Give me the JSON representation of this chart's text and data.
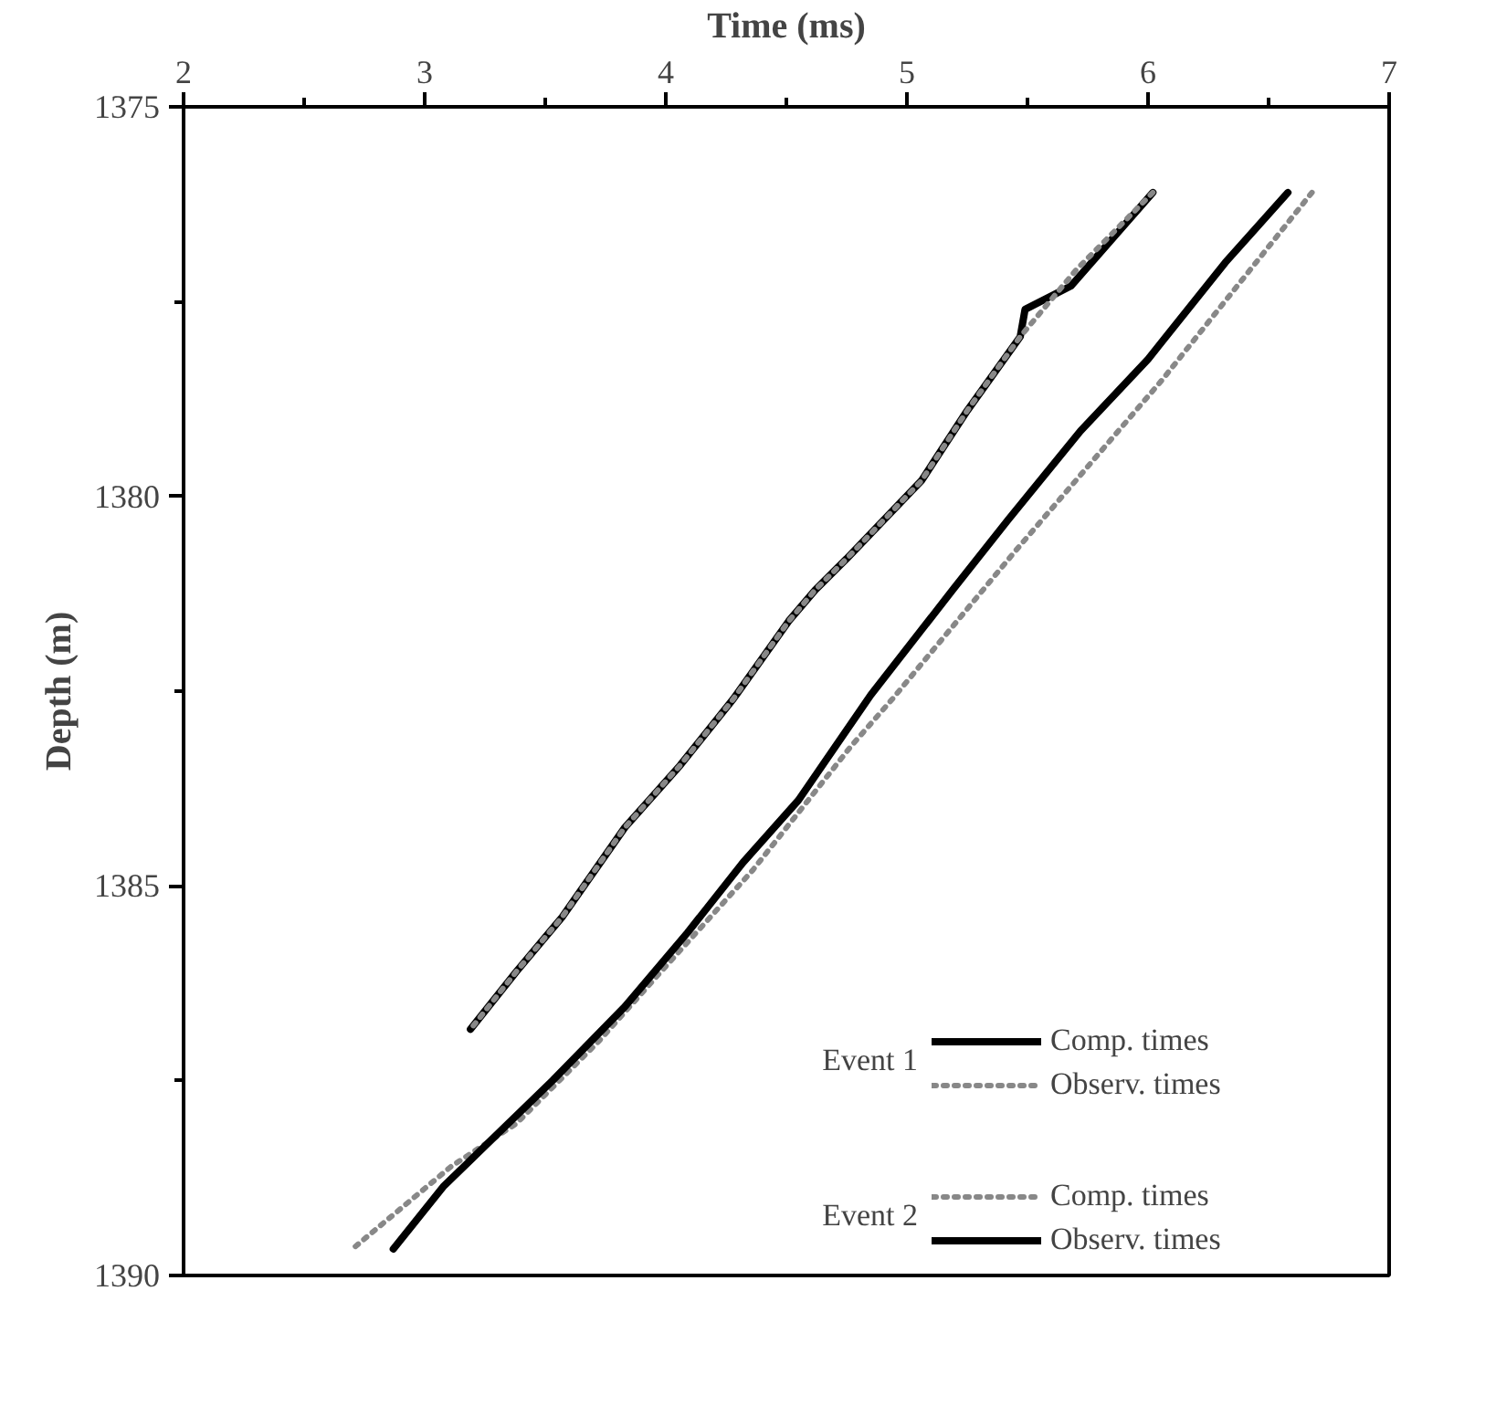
{
  "chart_data": {
    "type": "line",
    "xlabel": "Time (ms)",
    "ylabel": "Depth (m)",
    "xlim": [
      2,
      7
    ],
    "ylim": [
      1390,
      1375
    ],
    "xticks": [
      2,
      {
        "value": 2.5,
        "label": null
      },
      3,
      {
        "value": 3.5,
        "label": null
      },
      4,
      {
        "value": 4.5,
        "label": null
      },
      5,
      {
        "value": 5.5,
        "label": null
      },
      6,
      {
        "value": 6.5,
        "label": null
      },
      7
    ],
    "yticks": [
      1375,
      {
        "value": 1377.5,
        "label": null
      },
      1380,
      {
        "value": 1382.5,
        "label": null
      },
      1385,
      {
        "value": 1387.5,
        "label": null
      },
      1390
    ],
    "grid": false,
    "legend": "bottom right",
    "marker": "none",
    "annotations": [
      "Event 1",
      "Event 2"
    ],
    "series": [
      {
        "name": "Comp. times",
        "color": "#000000",
        "line_style": "solid",
        "x": [
          6.02,
          5.68,
          5.49,
          5.47,
          5.25,
          5.06,
          4.75,
          4.62,
          4.51,
          4.28,
          4.06,
          3.83,
          3.57,
          3.38,
          3.19
        ],
        "values": [
          1376.1,
          1377.3,
          1377.6,
          1377.95,
          1378.9,
          1379.8,
          1380.8,
          1381.2,
          1381.6,
          1382.6,
          1383.45,
          1384.25,
          1385.4,
          1386.1,
          1386.84
        ]
      },
      {
        "name": "Observ. times",
        "color": "#888888",
        "line_style": "dotted",
        "x": [
          6.02,
          5.7,
          5.47,
          5.25,
          5.06,
          4.75,
          4.62,
          4.51,
          4.28,
          4.06,
          3.83,
          3.57,
          3.38,
          3.19
        ],
        "values": [
          1376.1,
          1377.1,
          1377.95,
          1378.9,
          1379.8,
          1380.8,
          1381.2,
          1381.6,
          1382.6,
          1383.45,
          1384.25,
          1385.4,
          1386.1,
          1386.84
        ]
      },
      {
        "name": "Comp. times",
        "color": "#888888",
        "line_style": "dotted",
        "x": [
          6.68,
          6.06,
          5.45,
          4.94,
          4.77,
          4.36,
          3.98,
          3.72,
          3.38,
          3.11,
          2.7
        ],
        "values": [
          1376.1,
          1378.5,
          1380.7,
          1382.6,
          1383.2,
          1384.8,
          1386.1,
          1387.0,
          1388.05,
          1388.6,
          1389.66
        ]
      },
      {
        "name": "Observ. times",
        "color": "#000000",
        "line_style": "solid",
        "x": [
          6.58,
          6.32,
          6.0,
          5.72,
          5.42,
          5.19,
          4.85,
          4.55,
          4.32,
          4.09,
          3.83,
          3.53,
          3.23,
          3.08,
          2.87
        ],
        "values": [
          1376.1,
          1377.0,
          1378.24,
          1379.16,
          1380.3,
          1381.2,
          1382.55,
          1383.9,
          1384.7,
          1385.6,
          1386.55,
          1387.5,
          1388.4,
          1388.85,
          1389.66
        ]
      }
    ]
  }
}
